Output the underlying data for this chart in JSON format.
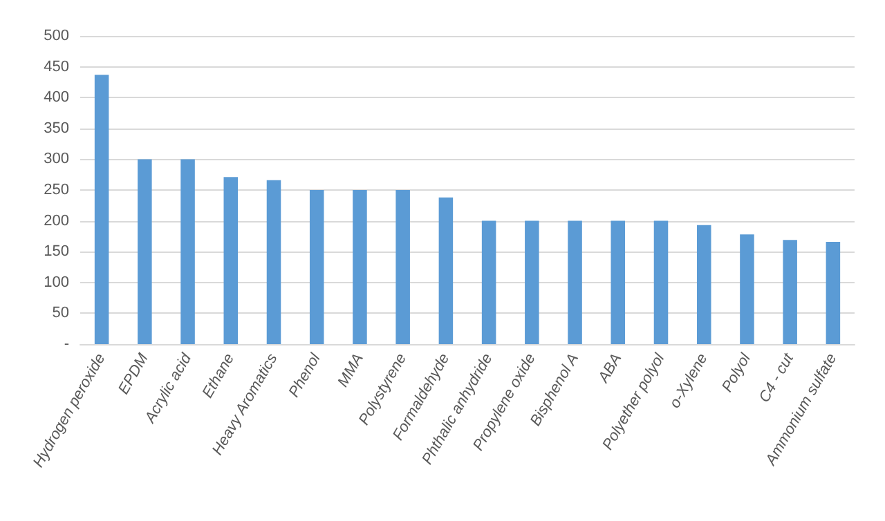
{
  "chart_data": {
    "type": "bar",
    "categories": [
      "Hydrogen peroxide",
      "EPDM",
      "Acrylic acid",
      "Ethane",
      "Heavy Aromatics",
      "Phenol",
      "MMA",
      "Polystyrene",
      "Formaldehyde",
      "Phthalic anhydride",
      "Propylene oxide",
      "Bisphenol A",
      "ABA",
      "Polyether polyol",
      "o-Xylene",
      "Polyol",
      "C4 - cut",
      "Ammonium sulfate"
    ],
    "values": [
      437,
      300,
      300,
      271,
      266,
      250,
      250,
      250,
      238,
      200,
      200,
      200,
      200,
      200,
      193,
      178,
      169,
      166
    ],
    "color": "#5b9bd5",
    "ylim": [
      0,
      500
    ],
    "yticks": [
      {
        "value": 0,
        "label": "-"
      },
      50,
      100,
      150,
      200,
      250,
      300,
      350,
      400,
      450,
      500
    ],
    "grid": "y"
  }
}
